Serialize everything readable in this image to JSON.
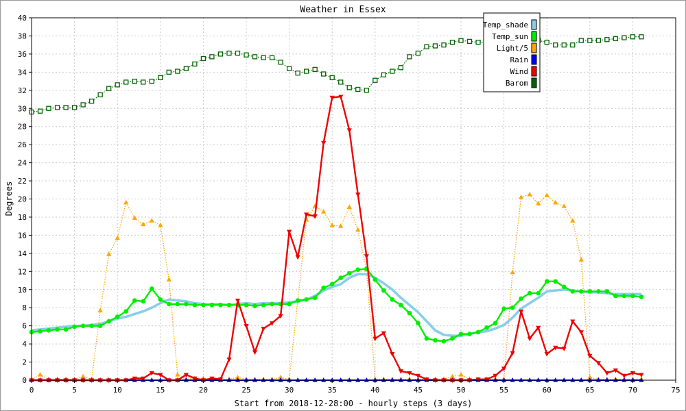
{
  "chart_data": {
    "type": "line",
    "title": "Weather in Essex",
    "xlabel": "Start from 2018-12-28:00 - hourly steps (3 days)",
    "ylabel": "Degrees",
    "xlim": [
      0,
      75
    ],
    "ylim": [
      0,
      40
    ],
    "x_ticks": [
      0,
      5,
      10,
      15,
      20,
      25,
      30,
      35,
      40,
      45,
      50,
      55,
      60,
      65,
      70,
      75
    ],
    "y_ticks": [
      0,
      2,
      4,
      6,
      8,
      10,
      12,
      14,
      16,
      18,
      20,
      22,
      24,
      26,
      28,
      30,
      32,
      34,
      36,
      38,
      40
    ],
    "grid": true,
    "legend_position": "top-right",
    "series": [
      {
        "name": "Temp_shade",
        "color": "#87ceeb",
        "marker": "none",
        "values": [
          5.5,
          5.6,
          5.7,
          5.8,
          5.9,
          6.0,
          6.0,
          6.1,
          6.2,
          6.5,
          6.8,
          7.0,
          7.3,
          7.6,
          8.0,
          8.5,
          8.9,
          8.8,
          8.7,
          8.5,
          8.4,
          8.4,
          8.4,
          8.3,
          8.4,
          8.5,
          8.4,
          8.5,
          8.5,
          8.5,
          8.6,
          8.7,
          8.9,
          9.3,
          9.9,
          10.3,
          10.6,
          11.3,
          11.7,
          11.7,
          11.3,
          10.7,
          10.0,
          9.1,
          8.3,
          7.5,
          6.5,
          5.5,
          5.0,
          4.9,
          4.9,
          5.1,
          5.3,
          5.4,
          5.7,
          6.1,
          6.9,
          7.9,
          8.5,
          9.1,
          9.8,
          9.9,
          10.0,
          9.9,
          9.8,
          9.7,
          9.7,
          9.6,
          9.5,
          9.5,
          9.5,
          9.5
        ]
      },
      {
        "name": "Temp_sun",
        "color": "#00ee00",
        "marker": "circle",
        "values": [
          5.3,
          5.4,
          5.5,
          5.6,
          5.6,
          5.9,
          6.0,
          6.0,
          6.0,
          6.5,
          7.0,
          7.6,
          8.8,
          8.7,
          10.1,
          8.9,
          8.4,
          8.4,
          8.4,
          8.3,
          8.3,
          8.3,
          8.3,
          8.3,
          8.3,
          8.3,
          8.2,
          8.3,
          8.4,
          8.4,
          8.4,
          8.8,
          8.9,
          9.1,
          10.2,
          10.6,
          11.3,
          11.8,
          12.2,
          12.3,
          11.1,
          9.9,
          8.9,
          8.3,
          7.4,
          6.3,
          4.6,
          4.4,
          4.3,
          4.6,
          5.1,
          5.1,
          5.3,
          5.8,
          6.3,
          7.9,
          8.0,
          9.0,
          9.6,
          9.6,
          10.9,
          10.9,
          10.3,
          9.8,
          9.8,
          9.8,
          9.8,
          9.8,
          9.3,
          9.3,
          9.3,
          9.2
        ]
      },
      {
        "name": "Light/5",
        "color": "#ffa500",
        "marker": "triangle-up",
        "values": [
          0.1,
          0.6,
          0.1,
          0.1,
          0.1,
          0.1,
          0.4,
          0.1,
          7.7,
          13.9,
          15.7,
          19.6,
          17.9,
          17.2,
          17.6,
          17.1,
          11.1,
          0.6,
          0.1,
          0.2,
          0.2,
          0.1,
          0.1,
          0.1,
          0.3,
          0.1,
          0.1,
          0.1,
          0.1,
          0.3,
          0.1,
          8.8,
          17.7,
          19.2,
          18.6,
          17.1,
          17.0,
          19.1,
          16.6,
          12.2,
          0.1,
          0.1,
          0.1,
          0.1,
          0.1,
          0.1,
          0.1,
          0.1,
          0.1,
          0.4,
          0.6,
          0.1,
          0.1,
          0.1,
          0.1,
          0.1,
          11.9,
          20.2,
          20.5,
          19.5,
          20.4,
          19.6,
          19.2,
          17.6,
          13.3,
          0.3,
          0.1,
          0.1,
          0.1,
          0.1,
          0.1,
          0.1
        ]
      },
      {
        "name": "Rain",
        "color": "#0000ff",
        "marker": "triangle-up",
        "values": [
          0,
          0,
          0,
          0,
          0,
          0,
          0,
          0,
          0,
          0,
          0,
          0,
          0,
          0,
          0,
          0,
          0,
          0,
          0,
          0,
          0,
          0,
          0,
          0,
          0,
          0,
          0,
          0,
          0,
          0,
          0,
          0,
          0,
          0,
          0,
          0,
          0,
          0,
          0,
          0,
          0,
          0,
          0,
          0,
          0,
          0,
          0,
          0,
          0,
          0,
          0,
          0,
          0,
          0,
          0,
          0,
          0,
          0,
          0,
          0,
          0,
          0,
          0,
          0,
          0,
          0,
          0,
          0,
          0,
          0,
          0,
          0
        ]
      },
      {
        "name": "Wind",
        "color": "#ee0000",
        "marker": "triangle-down",
        "values": [
          0.0,
          0.0,
          0.0,
          0.0,
          0.0,
          0.0,
          0.0,
          0.0,
          0.0,
          0.0,
          0.0,
          0.0,
          0.2,
          0.2,
          0.8,
          0.6,
          0.0,
          0.0,
          0.6,
          0.2,
          0.0,
          0.2,
          0.1,
          2.3,
          8.8,
          6.0,
          3.1,
          5.7,
          6.3,
          7.1,
          16.4,
          13.6,
          18.3,
          18.1,
          26.2,
          31.2,
          31.3,
          27.6,
          20.5,
          13.7,
          4.6,
          5.2,
          2.9,
          1.0,
          0.8,
          0.5,
          0.1,
          0.0,
          0.0,
          0.0,
          0.0,
          0.0,
          0.1,
          0.1,
          0.5,
          1.3,
          3.0,
          7.6,
          4.6,
          5.8,
          2.9,
          3.6,
          3.5,
          6.5,
          5.3,
          2.7,
          1.9,
          0.8,
          1.1,
          0.5,
          0.8,
          0.6
        ]
      },
      {
        "name": "Barom",
        "color": "#006400",
        "marker": "square",
        "values": [
          29.6,
          29.7,
          30.0,
          30.1,
          30.1,
          30.1,
          30.4,
          30.8,
          31.5,
          32.2,
          32.6,
          32.9,
          33.0,
          32.9,
          33.0,
          33.4,
          34.0,
          34.1,
          34.4,
          34.9,
          35.5,
          35.7,
          36.0,
          36.1,
          36.1,
          35.9,
          35.7,
          35.6,
          35.6,
          35.1,
          34.4,
          33.9,
          34.1,
          34.3,
          33.8,
          33.4,
          32.9,
          32.3,
          32.1,
          32.0,
          33.1,
          33.7,
          34.1,
          34.5,
          35.7,
          36.1,
          36.8,
          36.9,
          37.0,
          37.3,
          37.5,
          37.4,
          37.3,
          37.2,
          37.2,
          37.3,
          37.3,
          37.3,
          37.5,
          37.5,
          37.3,
          37.0,
          37.0,
          37.0,
          37.5,
          37.5,
          37.5,
          37.6,
          37.7,
          37.8,
          37.9,
          37.9
        ]
      }
    ]
  }
}
